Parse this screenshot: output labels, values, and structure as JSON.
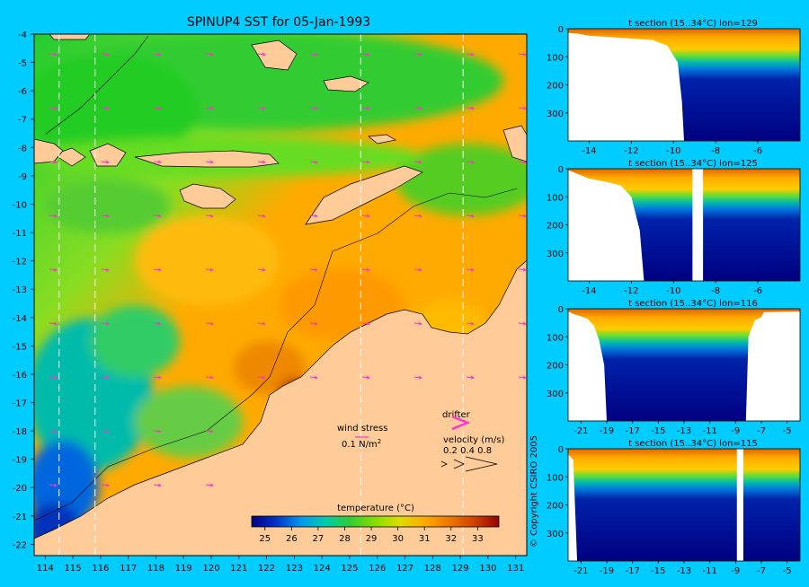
{
  "copyright": "© Copyright CSIRO 2005",
  "main_map": {
    "title": "SPINUP4 SST for 05-Jan-1993",
    "x_ticks": [
      "114",
      "115",
      "116",
      "117",
      "118",
      "119",
      "120",
      "121",
      "122",
      "123",
      "124",
      "125",
      "126",
      "127",
      "128",
      "129",
      "130",
      "131"
    ],
    "y_ticks": [
      "-4",
      "-5",
      "-6",
      "-7",
      "-8",
      "-9",
      "-10",
      "-11",
      "-12",
      "-13",
      "-14",
      "-15",
      "-16",
      "-17",
      "-18",
      "-19",
      "-20",
      "-21",
      "-22"
    ],
    "section_lines_lon": [
      114.5,
      115.8,
      125.4,
      129.1
    ],
    "wind_legend": {
      "title": "wind stress",
      "value": "0.1 N/m",
      "superscript": "2"
    },
    "drifter_legend": {
      "title": "drifter"
    },
    "velocity_legend": {
      "title": "velocity (m/s)",
      "values": "0.2 0.4 0.8"
    },
    "colorbar": {
      "title": "temperature (°C)",
      "ticks": [
        "25",
        "26",
        "27",
        "28",
        "29",
        "30",
        "31",
        "32",
        "33"
      ],
      "colors": [
        "#000080",
        "#0033cc",
        "#0099ee",
        "#00ccaa",
        "#33cc33",
        "#88dd00",
        "#dddd00",
        "#ffaa00",
        "#ee7700",
        "#cc4400",
        "#990000"
      ]
    },
    "colors": {
      "land": "#ffcc99",
      "accent_magenta": "#ff33cc",
      "wind_arrow": "#ff33cc",
      "warm": "#ffaa00",
      "cool": "#22cc44",
      "cold": "#1155dd"
    }
  },
  "chart_data": [
    {
      "type": "heatmap",
      "title": "SPINUP4 SST for 05-Jan-1993",
      "xlim": [
        113.6,
        131.4
      ],
      "ylim": [
        -22.4,
        -4
      ],
      "x_ticks": [
        114,
        115,
        116,
        117,
        118,
        119,
        120,
        121,
        122,
        123,
        124,
        125,
        126,
        127,
        128,
        129,
        130,
        131
      ],
      "y_ticks": [
        -4,
        -5,
        -6,
        -7,
        -8,
        -9,
        -10,
        -11,
        -12,
        -13,
        -14,
        -15,
        -16,
        -17,
        -18,
        -19,
        -20,
        -21,
        -22
      ],
      "colorbar_range": [
        24.5,
        33.8
      ],
      "colorbar_label": "temperature (°C)"
    },
    {
      "type": "heatmap",
      "title": "t section (15..34°C) lon=129",
      "xlim": [
        -15,
        -4
      ],
      "ylim": [
        400,
        0
      ],
      "x_ticks": [
        -14,
        -12,
        -10,
        -8,
        -6
      ],
      "y_ticks": [
        0,
        100,
        200,
        300
      ],
      "shelf_profile": [
        [
          -15,
          15
        ],
        [
          -14.5,
          18
        ],
        [
          -14,
          25
        ],
        [
          -13,
          30
        ],
        [
          -12,
          35
        ],
        [
          -11,
          40
        ],
        [
          -10.3,
          60
        ],
        [
          -9.8,
          120
        ],
        [
          -9.6,
          260
        ],
        [
          -9.5,
          400
        ]
      ]
    },
    {
      "type": "heatmap",
      "title": "t section (15..34°C) lon=125",
      "xlim": [
        -15,
        -4
      ],
      "ylim": [
        400,
        0
      ],
      "x_ticks": [
        -14,
        -12,
        -10,
        -8,
        -6
      ],
      "y_ticks": [
        0,
        100,
        200,
        300
      ],
      "shelf_profile": [
        [
          -15,
          5
        ],
        [
          -14.5,
          20
        ],
        [
          -14,
          35
        ],
        [
          -13,
          50
        ],
        [
          -12.5,
          60
        ],
        [
          -12,
          100
        ],
        [
          -11.6,
          220
        ],
        [
          -11.4,
          400
        ]
      ],
      "gap": [
        -9.1,
        -8.6
      ]
    },
    {
      "type": "heatmap",
      "title": "t section (15..34°C) lon=116",
      "xlim": [
        -22,
        -4
      ],
      "ylim": [
        400,
        0
      ],
      "x_ticks": [
        -21,
        -19,
        -17,
        -15,
        -13,
        -11,
        -9,
        -7,
        -5
      ],
      "y_ticks": [
        0,
        100,
        200,
        300
      ],
      "shelf_profile": [
        [
          -22,
          10
        ],
        [
          -21.5,
          20
        ],
        [
          -20.5,
          35
        ],
        [
          -20,
          60
        ],
        [
          -19.6,
          110
        ],
        [
          -19.2,
          200
        ],
        [
          -19,
          400
        ]
      ],
      "right_shelf": [
        [
          -8.2,
          400
        ],
        [
          -8,
          100
        ],
        [
          -7.5,
          40
        ],
        [
          -7,
          30
        ],
        [
          -6.8,
          12
        ],
        [
          -4,
          10
        ]
      ]
    },
    {
      "type": "heatmap",
      "title": "t section (15..34°C) lon=115",
      "xlim": [
        -22,
        -4
      ],
      "ylim": [
        400,
        0
      ],
      "x_ticks": [
        -21,
        -19,
        -17,
        -15,
        -13,
        -11,
        -9,
        -7,
        -5
      ],
      "y_ticks": [
        0,
        100,
        200,
        300
      ],
      "shelf_profile": [
        [
          -22,
          20
        ],
        [
          -21.6,
          40
        ],
        [
          -21.3,
          400
        ]
      ],
      "gap": [
        -8.9,
        -8.4
      ]
    }
  ],
  "sections": [
    {
      "title": "t section (15..34°C) lon=129",
      "x_ticks": [
        "-14",
        "-12",
        "-10",
        "-8",
        "-6"
      ],
      "y_ticks": [
        "0",
        "100",
        "200",
        "300"
      ]
    },
    {
      "title": "t section (15..34°C) lon=125",
      "x_ticks": [
        "-14",
        "-12",
        "-10",
        "-8",
        "-6"
      ],
      "y_ticks": [
        "0",
        "100",
        "200",
        "300"
      ]
    },
    {
      "title": "t section (15..34°C) lon=116",
      "x_ticks": [
        "-21",
        "-19",
        "-17",
        "-15",
        "-13",
        "-11",
        "-9",
        "-7",
        "-5"
      ],
      "y_ticks": [
        "0",
        "100",
        "200",
        "300"
      ]
    },
    {
      "title": "t section (15..34°C) lon=115",
      "x_ticks": [
        "-21",
        "-19",
        "-17",
        "-15",
        "-13",
        "-11",
        "-9",
        "-7",
        "-5"
      ],
      "y_ticks": [
        "0",
        "100",
        "200",
        "300"
      ]
    }
  ]
}
